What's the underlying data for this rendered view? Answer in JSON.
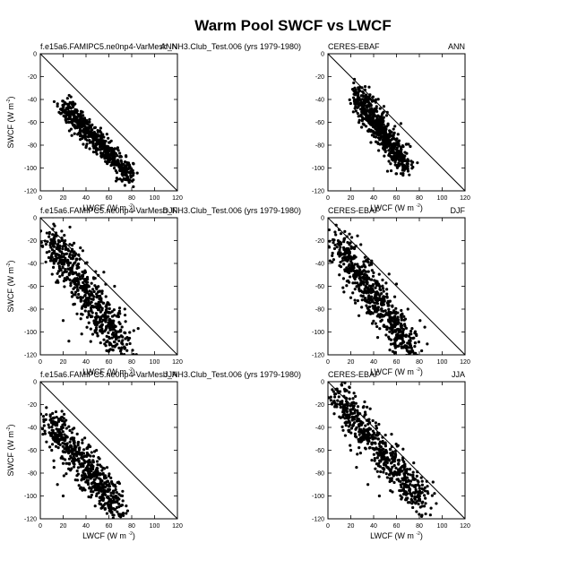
{
  "title": "Warm Pool SWCF vs LWCF",
  "chart_data": {
    "type": "scatter",
    "grid": false,
    "reference_line": "y = -x",
    "xlim": [
      0,
      120
    ],
    "ylim": [
      -120,
      0
    ],
    "x_ticks": [
      "0",
      "20",
      "40",
      "60",
      "80",
      "100",
      "120"
    ],
    "y_ticks": [
      "0",
      "-20",
      "-40",
      "-60",
      "-80",
      "-100",
      "-120"
    ],
    "xlabel": "LWCF (W m",
    "ylabel": "SWCF (W m",
    "unit_exponent": "-2",
    "panels": [
      {
        "left_title": "f.e15a6.FAMIPC5.ne0np4-VarMesh_NH3.Club_Test.006 (yrs 1979-1980)",
        "right_title": "ANN",
        "blob": {
          "x0": 22,
          "y0": -46,
          "x1": 80,
          "y1": -108,
          "spread": 5,
          "n": 600
        },
        "extra": [
          [
            25,
            -60
          ],
          [
            28,
            -58
          ],
          [
            30,
            -70
          ],
          [
            27,
            -66
          ],
          [
            35,
            -75
          ],
          [
            40,
            -82
          ]
        ]
      },
      {
        "left_title": "CERES-EBAF",
        "right_title": "ANN",
        "blob": {
          "x0": 26,
          "y0": -35,
          "x1": 68,
          "y1": -100,
          "spread": 6,
          "n": 600
        },
        "extra": [
          [
            30,
            -50
          ],
          [
            40,
            -60
          ],
          [
            45,
            -68
          ],
          [
            60,
            -105
          ],
          [
            55,
            -90
          ]
        ]
      },
      {
        "left_title": "f.e15a6.FAMIPC5.ne0np4-VarMesh_NH3.Club_Test.006 (yrs 1979-1980)",
        "right_title": "DJF",
        "blob": {
          "x0": 8,
          "y0": -18,
          "x1": 74,
          "y1": -116,
          "spread": 9,
          "n": 650
        },
        "extra": [
          [
            8,
            -14
          ],
          [
            10,
            -20
          ],
          [
            12,
            -40
          ],
          [
            15,
            -55
          ],
          [
            20,
            -90
          ],
          [
            25,
            -108
          ],
          [
            65,
            -60
          ]
        ]
      },
      {
        "left_title": "CERES-EBAF",
        "right_title": "DJF",
        "blob": {
          "x0": 8,
          "y0": -22,
          "x1": 74,
          "y1": -116,
          "spread": 8,
          "n": 650
        },
        "extra": [
          [
            10,
            -50
          ],
          [
            14,
            -65
          ],
          [
            20,
            -70
          ],
          [
            30,
            -72
          ],
          [
            60,
            -58
          ],
          [
            70,
            -80
          ]
        ]
      },
      {
        "left_title": "f.e15a6.FAMIPC5.ne0np4-VarMesh_NH3.Club_Test.006 (yrs 1979-1980)",
        "right_title": "JJA",
        "blob": {
          "x0": 8,
          "y0": -33,
          "x1": 68,
          "y1": -112,
          "spread": 8,
          "n": 600
        },
        "extra": [
          [
            10,
            -60
          ],
          [
            12,
            -75
          ],
          [
            15,
            -90
          ],
          [
            20,
            -100
          ],
          [
            65,
            -112
          ]
        ]
      },
      {
        "left_title": "CERES-EBAF",
        "right_title": "JJA",
        "blob": {
          "x0": 8,
          "y0": -13,
          "x1": 84,
          "y1": -108,
          "spread": 8,
          "n": 600
        },
        "extra": [
          [
            20,
            -60
          ],
          [
            25,
            -75
          ],
          [
            35,
            -90
          ],
          [
            45,
            -100
          ],
          [
            80,
            -100
          ]
        ]
      }
    ]
  }
}
